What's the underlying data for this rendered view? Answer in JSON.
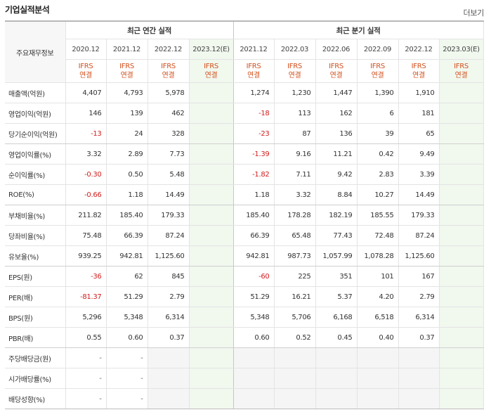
{
  "header": {
    "title": "기업실적분석",
    "more_label": "더보기"
  },
  "table": {
    "corner_label": "주요재무정보",
    "annual_group": "최근 연간 실적",
    "quarter_group": "최근 분기 실적",
    "annual_periods": [
      "2020.12",
      "2021.12",
      "2022.12",
      "2023.12(E)"
    ],
    "quarter_periods": [
      "2021.12",
      "2022.03",
      "2022.06",
      "2022.09",
      "2022.12",
      "2023.03(E)"
    ],
    "ifrs_top": "IFRS",
    "ifrs_bottom": "연결",
    "rows": [
      {
        "label": "매출액(억원)",
        "annual": [
          "4,407",
          "4,793",
          "5,978",
          ""
        ],
        "quarter": [
          "1,274",
          "1,230",
          "1,447",
          "1,390",
          "1,910",
          ""
        ]
      },
      {
        "label": "영업이익(억원)",
        "annual": [
          "146",
          "139",
          "462",
          ""
        ],
        "quarter": [
          "-18",
          "113",
          "162",
          "6",
          "181",
          ""
        ]
      },
      {
        "label": "당기순이익(억원)",
        "annual": [
          "-13",
          "24",
          "328",
          ""
        ],
        "quarter": [
          "-23",
          "87",
          "136",
          "39",
          "65",
          ""
        ]
      },
      {
        "label": "영업이익률(%)",
        "annual": [
          "3.32",
          "2.89",
          "7.73",
          ""
        ],
        "quarter": [
          "-1.39",
          "9.16",
          "11.21",
          "0.42",
          "9.49",
          ""
        ]
      },
      {
        "label": "순이익률(%)",
        "annual": [
          "-0.30",
          "0.50",
          "5.48",
          ""
        ],
        "quarter": [
          "-1.82",
          "7.11",
          "9.42",
          "2.83",
          "3.39",
          ""
        ]
      },
      {
        "label": "ROE(%)",
        "annual": [
          "-0.66",
          "1.18",
          "14.49",
          ""
        ],
        "quarter": [
          "1.18",
          "3.32",
          "8.84",
          "10.27",
          "14.49",
          ""
        ]
      },
      {
        "label": "부채비율(%)",
        "annual": [
          "211.82",
          "185.40",
          "179.33",
          ""
        ],
        "quarter": [
          "185.40",
          "178.28",
          "182.19",
          "185.55",
          "179.33",
          ""
        ]
      },
      {
        "label": "당좌비율(%)",
        "annual": [
          "75.48",
          "66.39",
          "87.24",
          ""
        ],
        "quarter": [
          "66.39",
          "65.48",
          "77.43",
          "72.48",
          "87.24",
          ""
        ]
      },
      {
        "label": "유보율(%)",
        "annual": [
          "939.25",
          "942.81",
          "1,125.60",
          ""
        ],
        "quarter": [
          "942.81",
          "987.73",
          "1,057.99",
          "1,078.28",
          "1,125.60",
          ""
        ]
      },
      {
        "label": "EPS(원)",
        "annual": [
          "-36",
          "62",
          "845",
          ""
        ],
        "quarter": [
          "-60",
          "225",
          "351",
          "101",
          "167",
          ""
        ]
      },
      {
        "label": "PER(배)",
        "annual": [
          "-81.37",
          "51.29",
          "2.79",
          ""
        ],
        "quarter": [
          "51.29",
          "16.21",
          "5.37",
          "4.20",
          "2.79",
          ""
        ]
      },
      {
        "label": "BPS(원)",
        "annual": [
          "5,296",
          "5,348",
          "6,314",
          ""
        ],
        "quarter": [
          "5,348",
          "5,706",
          "6,168",
          "6,518",
          "6,314",
          ""
        ]
      },
      {
        "label": "PBR(배)",
        "annual": [
          "0.55",
          "0.60",
          "0.37",
          ""
        ],
        "quarter": [
          "0.60",
          "0.52",
          "0.45",
          "0.40",
          "0.37",
          ""
        ]
      },
      {
        "label": "주당배당금(원)",
        "annual": [
          "-",
          "-",
          "",
          ""
        ],
        "quarter": [
          "",
          "",
          "",
          "",
          "",
          ""
        ]
      },
      {
        "label": "시가배당률(%)",
        "annual": [
          "-",
          "-",
          "",
          ""
        ],
        "quarter": [
          "",
          "",
          "",
          "",
          "",
          ""
        ]
      },
      {
        "label": "배당성향(%)",
        "annual": [
          "-",
          "-",
          "",
          ""
        ],
        "quarter": [
          "",
          "",
          "",
          "",
          "",
          ""
        ]
      }
    ]
  },
  "colors": {
    "negative": "#d21d1d",
    "ifrs": "#d2501e",
    "estimate_bg": "#f1f8ee",
    "empty_bg": "#f5f5f5"
  }
}
